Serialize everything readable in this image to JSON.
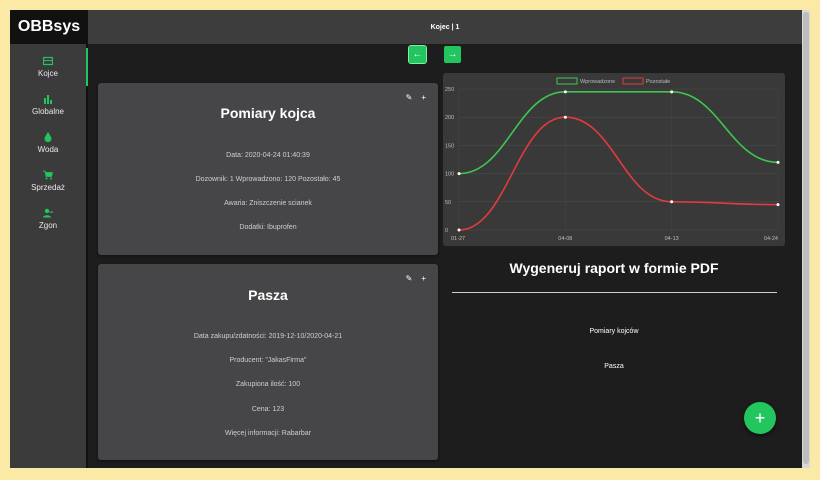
{
  "app": {
    "brand": "OBBsys",
    "page_title": "Kojec | 1"
  },
  "sidebar": {
    "items": [
      {
        "label": "Kojce",
        "icon": "pen-grid-icon",
        "active": true
      },
      {
        "label": "Globalne",
        "icon": "bar-chart-icon",
        "active": false
      },
      {
        "label": "Woda",
        "icon": "water-drop-icon",
        "active": false
      },
      {
        "label": "Sprzedaż",
        "icon": "cart-icon",
        "active": false
      },
      {
        "label": "Zgon",
        "icon": "person-remove-icon",
        "active": false
      }
    ]
  },
  "nav": {
    "prev_label": "←",
    "next_label": "→"
  },
  "measurements_card": {
    "title": "Pomiary kojca",
    "rows": [
      "Data: 2020-04-24 01:40:39",
      "Dozownik: 1 Wprowadzono: 120 Pozostało: 45",
      "Awaria: Zniszczenie scianek",
      "Dodatki: Ibuprofen"
    ],
    "edit_icon": "✎",
    "add_icon": "+"
  },
  "feed_card": {
    "title": "Pasza",
    "rows": [
      "Data zakupu/zdatności: 2019-12-10/2020-04-21",
      "Producent: \"JakasFirma\"",
      "Zakupiona ilość: 100",
      "Cena: 123",
      "Więcej informacji: Rabarbar"
    ],
    "edit_icon": "✎",
    "add_icon": "+"
  },
  "chart_data": {
    "type": "line",
    "x": [
      "01-27",
      "04-08",
      "04-13",
      "04-24"
    ],
    "ylim": [
      0,
      250
    ],
    "yticks": [
      "0",
      "50",
      "100",
      "150",
      "200",
      "250"
    ],
    "legend_position": "top",
    "series": [
      {
        "name": "Wprowadzone",
        "color": "#3ec64f",
        "values": [
          100,
          245,
          245,
          120
        ]
      },
      {
        "name": "Pozostałe",
        "color": "#e23b3b",
        "values": [
          0,
          200,
          50,
          45
        ]
      }
    ]
  },
  "report": {
    "title": "Wygeneruj raport w formie PDF",
    "links": [
      "Pomiary kojców",
      "Pasza"
    ]
  },
  "fab": {
    "label": "+"
  }
}
